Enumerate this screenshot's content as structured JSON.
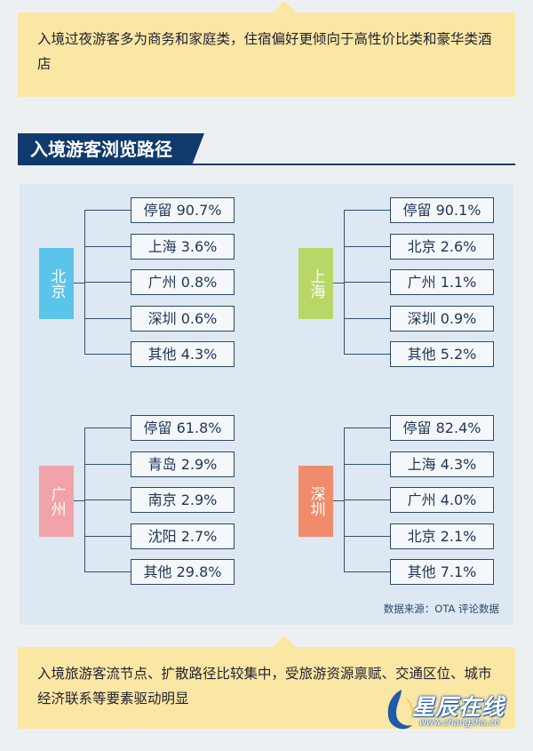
{
  "top_note": "入境过夜游客多为商务和家庭类，住宿偏好更倾向于高性价比类和豪华类酒店",
  "section_title": "入境游客浏览路径",
  "colors": {
    "beijing": "#5bc4ea",
    "shanghai": "#b9d766",
    "guangzhou": "#f2a3aa",
    "shenzhen": "#f08c6c",
    "navy": "#103a6b",
    "callout": "#fbe7a4"
  },
  "groups": [
    {
      "origin": "北京",
      "destinations": [
        {
          "label": "停留 90.7%",
          "name": "停留",
          "value": 90.7
        },
        {
          "label": "上海 3.6%",
          "name": "上海",
          "value": 3.6
        },
        {
          "label": "广州 0.8%",
          "name": "广州",
          "value": 0.8
        },
        {
          "label": "深圳 0.6%",
          "name": "深圳",
          "value": 0.6
        },
        {
          "label": "其他 4.3%",
          "name": "其他",
          "value": 4.3
        }
      ]
    },
    {
      "origin": "上海",
      "destinations": [
        {
          "label": "停留 90.1%",
          "name": "停留",
          "value": 90.1
        },
        {
          "label": "北京 2.6%",
          "name": "北京",
          "value": 2.6
        },
        {
          "label": "广州 1.1%",
          "name": "广州",
          "value": 1.1
        },
        {
          "label": "深圳 0.9%",
          "name": "深圳",
          "value": 0.9
        },
        {
          "label": "其他 5.2%",
          "name": "其他",
          "value": 5.2
        }
      ]
    },
    {
      "origin": "广州",
      "destinations": [
        {
          "label": "停留 61.8%",
          "name": "停留",
          "value": 61.8
        },
        {
          "label": "青岛 2.9%",
          "name": "青岛",
          "value": 2.9
        },
        {
          "label": "南京 2.9%",
          "name": "南京",
          "value": 2.9
        },
        {
          "label": "沈阳 2.7%",
          "name": "沈阳",
          "value": 2.7
        },
        {
          "label": "其他 29.8%",
          "name": "其他",
          "value": 29.8
        }
      ]
    },
    {
      "origin": "深圳",
      "destinations": [
        {
          "label": "停留 82.4%",
          "name": "停留",
          "value": 82.4
        },
        {
          "label": "上海 4.3%",
          "name": "上海",
          "value": 4.3
        },
        {
          "label": "广州 4.0%",
          "name": "广州",
          "value": 4.0
        },
        {
          "label": "北京 2.1%",
          "name": "北京",
          "value": 2.1
        },
        {
          "label": "其他 7.1%",
          "name": "其他",
          "value": 7.1
        }
      ]
    }
  ],
  "source_note": "数据来源：OTA 评论数据",
  "bottom_note": "入境旅游客流节点、扩散路径比较集中，受旅游资源禀赋、交通区位、城市经济联系等要素驱动明显",
  "watermark": {
    "text": "星辰在线",
    "url": "www.changsha.cn"
  }
}
